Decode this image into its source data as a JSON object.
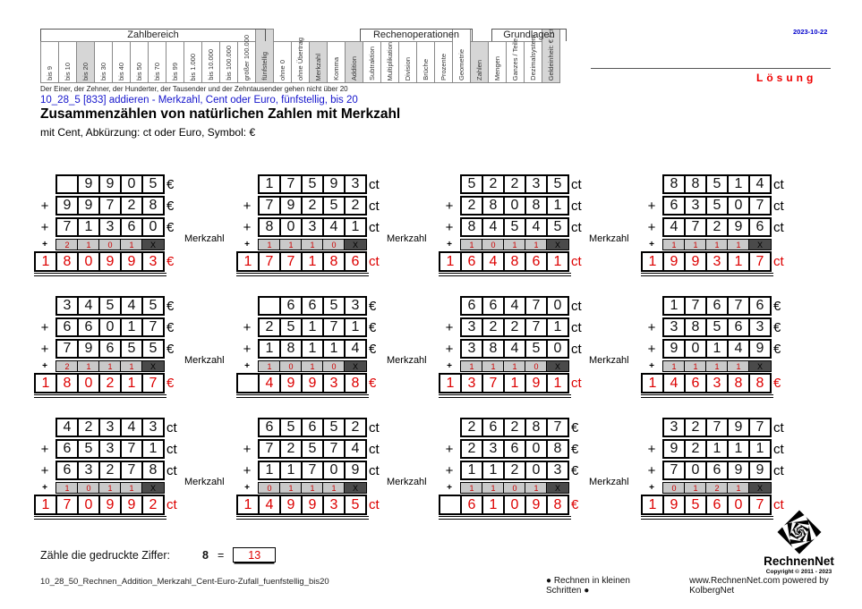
{
  "meta": {
    "date": "2023-10-22",
    "solution_label": "Lösung"
  },
  "header": {
    "groups": [
      {
        "label": "Zahlbereich",
        "span": 12
      },
      {
        "label": "",
        "span": 5
      },
      {
        "label": "Rechenoperationen",
        "span": 6
      },
      {
        "label": "",
        "span": 1
      },
      {
        "label": "Grundlagen",
        "span": 4
      },
      {
        "label": "",
        "span": 1
      }
    ],
    "columns": [
      {
        "label": "bis 9",
        "shaded": false,
        "tall": false
      },
      {
        "label": "bis 10",
        "shaded": false,
        "tall": false
      },
      {
        "label": "bis 20",
        "shaded": true,
        "tall": false
      },
      {
        "label": "bis 30",
        "shaded": false,
        "tall": false
      },
      {
        "label": "bis 40",
        "shaded": false,
        "tall": false
      },
      {
        "label": "bis 50",
        "shaded": false,
        "tall": false
      },
      {
        "label": "bis 70",
        "shaded": false,
        "tall": false
      },
      {
        "label": "bis 99",
        "shaded": false,
        "tall": false
      },
      {
        "label": "bis 1.000",
        "shaded": false,
        "tall": false
      },
      {
        "label": "bis 10.000",
        "shaded": false,
        "tall": false
      },
      {
        "label": "bis 100.000",
        "shaded": false,
        "tall": false
      },
      {
        "label": "größer 100.000",
        "shaded": false,
        "tall": false
      },
      {
        "label": "fünfstellig",
        "shaded": true,
        "tall": true
      },
      {
        "label": "ohne 0",
        "shaded": false,
        "tall": false
      },
      {
        "label": "ohne Übertrag",
        "shaded": false,
        "tall": false
      },
      {
        "label": "Merkzahl",
        "shaded": true,
        "tall": false
      },
      {
        "label": "Komma",
        "shaded": false,
        "tall": false
      },
      {
        "label": "Addition",
        "shaded": true,
        "tall": false
      },
      {
        "label": "Subtraktion",
        "shaded": false,
        "tall": false
      },
      {
        "label": "Multiplikation",
        "shaded": false,
        "tall": false
      },
      {
        "label": "Division",
        "shaded": false,
        "tall": false
      },
      {
        "label": "Brüche",
        "shaded": false,
        "tall": false
      },
      {
        "label": "Prozente",
        "shaded": false,
        "tall": false
      },
      {
        "label": "Geometrie",
        "shaded": false,
        "tall": true
      },
      {
        "label": "Zahlen",
        "shaded": true,
        "tall": false
      },
      {
        "label": "Mengen",
        "shaded": false,
        "tall": false
      },
      {
        "label": "Ganzes / Teile",
        "shaded": false,
        "tall": false
      },
      {
        "label": "Dezimalsystem",
        "shaded": false,
        "tall": false
      },
      {
        "label": "Geldeinheit: € / ct",
        "shaded": true,
        "tall": true
      }
    ],
    "note": "Der Einer, der Zehner, der Hunderter, der Tausender und der Zehntausender gehen nicht über 20"
  },
  "title": {
    "code_line": "10_28_5   [833]   addieren - Merkzahl, Cent oder Euro, fünfstellig, bis 20",
    "heading": "Zusammenzählen von natürlichen Zahlen mit Merkzahl",
    "subheading": "mit Cent, Abkürzung: ct oder Euro, Symbol: €"
  },
  "labels": {
    "merkzahl": "Merkzahl",
    "plus": "+",
    "x": "X"
  },
  "problems": [
    {
      "addends": [
        [
          "",
          "9",
          "9",
          "0",
          "5"
        ],
        [
          "9",
          "9",
          "7",
          "2",
          "8"
        ],
        [
          "7",
          "1",
          "3",
          "6",
          "0"
        ]
      ],
      "carries": [
        "2",
        "1",
        "0",
        "1"
      ],
      "result": [
        "1",
        "8",
        "0",
        "9",
        "9",
        "3"
      ],
      "unit": "€",
      "merkzahl_label": true
    },
    {
      "addends": [
        [
          "1",
          "7",
          "5",
          "9",
          "3"
        ],
        [
          "7",
          "9",
          "2",
          "5",
          "2"
        ],
        [
          "8",
          "0",
          "3",
          "4",
          "1"
        ]
      ],
      "carries": [
        "1",
        "1",
        "1",
        "0"
      ],
      "result": [
        "1",
        "7",
        "7",
        "1",
        "8",
        "6"
      ],
      "unit": "ct",
      "merkzahl_label": true
    },
    {
      "addends": [
        [
          "5",
          "2",
          "2",
          "3",
          "5"
        ],
        [
          "2",
          "8",
          "0",
          "8",
          "1"
        ],
        [
          "8",
          "4",
          "5",
          "4",
          "5"
        ]
      ],
      "carries": [
        "1",
        "0",
        "1",
        "1"
      ],
      "result": [
        "1",
        "6",
        "4",
        "8",
        "6",
        "1"
      ],
      "unit": "ct",
      "merkzahl_label": true
    },
    {
      "addends": [
        [
          "8",
          "8",
          "5",
          "1",
          "4"
        ],
        [
          "6",
          "3",
          "5",
          "0",
          "7"
        ],
        [
          "4",
          "7",
          "2",
          "9",
          "6"
        ]
      ],
      "carries": [
        "1",
        "1",
        "1",
        "1"
      ],
      "result": [
        "1",
        "9",
        "9",
        "3",
        "1",
        "7"
      ],
      "unit": "ct",
      "merkzahl_label": false
    },
    {
      "addends": [
        [
          "3",
          "4",
          "5",
          "4",
          "5"
        ],
        [
          "6",
          "6",
          "0",
          "1",
          "7"
        ],
        [
          "7",
          "9",
          "6",
          "5",
          "5"
        ]
      ],
      "carries": [
        "2",
        "1",
        "1",
        "1"
      ],
      "result": [
        "1",
        "8",
        "0",
        "2",
        "1",
        "7"
      ],
      "unit": "€",
      "merkzahl_label": true
    },
    {
      "addends": [
        [
          "",
          "6",
          "6",
          "5",
          "3"
        ],
        [
          "2",
          "5",
          "1",
          "7",
          "1"
        ],
        [
          "1",
          "8",
          "1",
          "1",
          "4"
        ]
      ],
      "carries": [
        "1",
        "0",
        "1",
        "0"
      ],
      "result": [
        "",
        "4",
        "9",
        "9",
        "3",
        "8"
      ],
      "unit": "€",
      "merkzahl_label": true
    },
    {
      "addends": [
        [
          "6",
          "6",
          "4",
          "7",
          "0"
        ],
        [
          "3",
          "2",
          "2",
          "7",
          "1"
        ],
        [
          "3",
          "8",
          "4",
          "5",
          "0"
        ]
      ],
      "carries": [
        "1",
        "1",
        "1",
        "0"
      ],
      "result": [
        "1",
        "3",
        "7",
        "1",
        "9",
        "1"
      ],
      "unit": "ct",
      "merkzahl_label": true
    },
    {
      "addends": [
        [
          "1",
          "7",
          "6",
          "7",
          "6"
        ],
        [
          "3",
          "8",
          "5",
          "6",
          "3"
        ],
        [
          "9",
          "0",
          "1",
          "4",
          "9"
        ]
      ],
      "carries": [
        "1",
        "1",
        "1",
        "1"
      ],
      "result": [
        "1",
        "4",
        "6",
        "3",
        "8",
        "8"
      ],
      "unit": "€",
      "merkzahl_label": false
    },
    {
      "addends": [
        [
          "4",
          "2",
          "3",
          "4",
          "3"
        ],
        [
          "6",
          "5",
          "3",
          "7",
          "1"
        ],
        [
          "6",
          "3",
          "2",
          "7",
          "8"
        ]
      ],
      "carries": [
        "1",
        "0",
        "1",
        "1"
      ],
      "result": [
        "1",
        "7",
        "0",
        "9",
        "9",
        "2"
      ],
      "unit": "ct",
      "merkzahl_label": true
    },
    {
      "addends": [
        [
          "6",
          "5",
          "6",
          "5",
          "2"
        ],
        [
          "7",
          "2",
          "5",
          "7",
          "4"
        ],
        [
          "1",
          "1",
          "7",
          "0",
          "9"
        ]
      ],
      "carries": [
        "0",
        "1",
        "1",
        "1"
      ],
      "result": [
        "1",
        "4",
        "9",
        "9",
        "3",
        "5"
      ],
      "unit": "ct",
      "merkzahl_label": true
    },
    {
      "addends": [
        [
          "2",
          "6",
          "2",
          "8",
          "7"
        ],
        [
          "2",
          "3",
          "6",
          "0",
          "8"
        ],
        [
          "1",
          "1",
          "2",
          "0",
          "3"
        ]
      ],
      "carries": [
        "1",
        "1",
        "0",
        "1"
      ],
      "result": [
        "",
        "6",
        "1",
        "0",
        "9",
        "8"
      ],
      "unit": "€",
      "merkzahl_label": true
    },
    {
      "addends": [
        [
          "3",
          "2",
          "7",
          "9",
          "7"
        ],
        [
          "9",
          "2",
          "1",
          "1",
          "1"
        ],
        [
          "7",
          "0",
          "6",
          "9",
          "9"
        ]
      ],
      "carries": [
        "0",
        "1",
        "2",
        "1"
      ],
      "result": [
        "1",
        "9",
        "5",
        "6",
        "0",
        "7"
      ],
      "unit": "ct",
      "merkzahl_label": false
    }
  ],
  "count_task": {
    "prompt": "Zähle die gedruckte Ziffer:",
    "digit": "8",
    "equals": "=",
    "answer": "13"
  },
  "footer": {
    "filename": "10_28_50_Rechnen_Addition_Merkzahl_Cent-Euro-Zufall_fuenfstellig_bis20",
    "slogan": "● Rechnen in kleinen Schritten ●",
    "site": "www.RechnenNet.com powered by KolbergNet"
  },
  "logo": {
    "name": "RechnenNet",
    "copyright": "Copyright © 2011 - 2023"
  }
}
